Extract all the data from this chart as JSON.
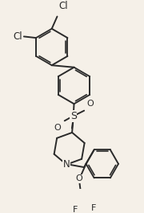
{
  "background_color": "#f5f0e8",
  "line_color": "#2a2a2a",
  "line_width": 1.4,
  "figsize": [
    1.8,
    2.65
  ],
  "dpi": 100,
  "xlim": [
    0,
    180
  ],
  "ylim": [
    0,
    265
  ]
}
